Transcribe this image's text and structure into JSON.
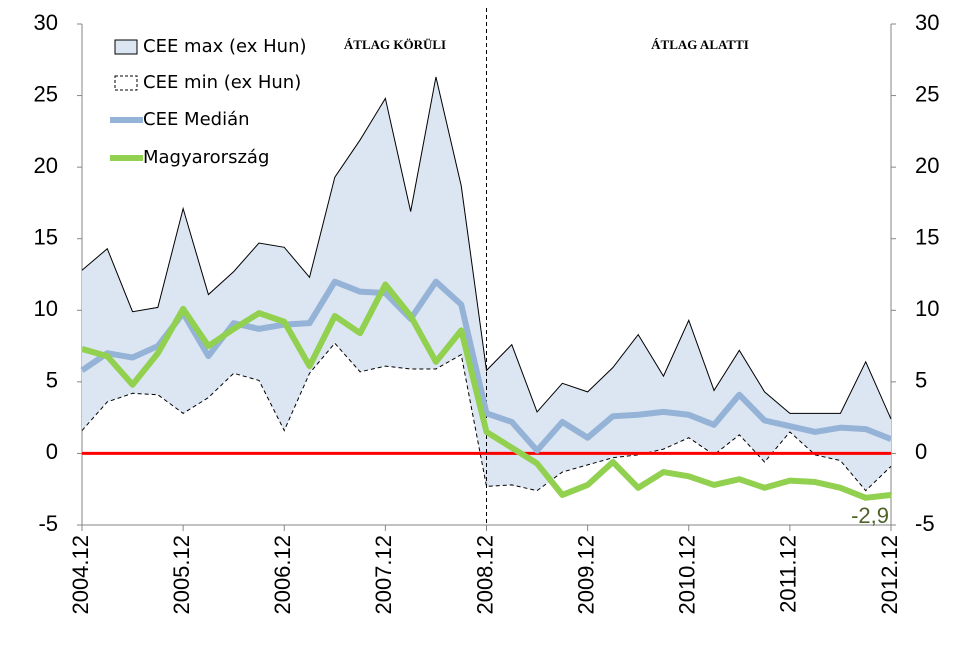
{
  "chart_data": {
    "type": "line",
    "categories": [
      "2004.12",
      null,
      null,
      null,
      "2005.12",
      null,
      null,
      null,
      "2006.12",
      null,
      null,
      null,
      "2007.12",
      null,
      null,
      null,
      "2008.12",
      null,
      null,
      null,
      "2009.12",
      null,
      null,
      null,
      "2010.12",
      null,
      null,
      null,
      "2011.12",
      null,
      null,
      null,
      "2012.12"
    ],
    "series": [
      {
        "name": "CEE max (ex Hun)",
        "color": "#000000",
        "fill": "#dce6f2",
        "values": [
          12.8,
          14.3,
          9.9,
          10.2,
          17.1,
          11.1,
          12.7,
          14.7,
          14.4,
          12.3,
          19.3,
          21.9,
          24.8,
          16.9,
          26.3,
          18.7,
          5.8,
          7.6,
          2.9,
          4.9,
          4.3,
          6.0,
          8.3,
          5.4,
          9.3,
          4.4,
          7.2,
          4.3,
          2.8,
          2.8,
          2.8,
          6.4,
          2.4
        ]
      },
      {
        "name": "CEE min (ex Hun)",
        "color": "#000000",
        "values": [
          1.6,
          3.6,
          4.2,
          4.1,
          2.8,
          3.9,
          5.6,
          5.1,
          1.6,
          5.6,
          7.7,
          5.7,
          6.1,
          5.9,
          5.9,
          6.9,
          -2.3,
          -2.2,
          -2.6,
          -1.3,
          -0.8,
          -0.3,
          -0.1,
          0.3,
          1.1,
          -0.1,
          1.3,
          -0.6,
          1.5,
          -0.1,
          -0.5,
          -2.6,
          -0.9
        ]
      },
      {
        "name": "CEE Medián",
        "color": "#95b3d7",
        "values": [
          5.8,
          7.0,
          6.7,
          7.5,
          9.8,
          6.8,
          9.1,
          8.7,
          9.0,
          9.1,
          12.0,
          11.3,
          11.2,
          9.4,
          12.0,
          10.4,
          2.8,
          2.2,
          0.2,
          2.2,
          1.1,
          2.6,
          2.7,
          2.9,
          2.7,
          2.0,
          4.1,
          2.3,
          1.9,
          1.5,
          1.8,
          1.7,
          1.0
        ]
      },
      {
        "name": "Magyarország",
        "color": "#92d050",
        "values": [
          7.3,
          6.8,
          4.8,
          7.0,
          10.1,
          7.5,
          8.7,
          9.8,
          9.2,
          6.1,
          9.6,
          8.4,
          11.8,
          9.6,
          6.4,
          8.6,
          1.5,
          0.4,
          -0.7,
          -2.9,
          -2.2,
          -0.6,
          -2.4,
          -1.3,
          -1.6,
          -2.2,
          -1.8,
          -2.4,
          -1.9,
          -2.0,
          -2.4,
          -3.1,
          -2.9
        ],
        "value_labels": [
          null,
          null,
          null,
          null,
          null,
          null,
          null,
          null,
          null,
          null,
          null,
          null,
          null,
          null,
          null,
          null,
          null,
          null,
          null,
          null,
          null,
          null,
          null,
          null,
          null,
          null,
          null,
          null,
          null,
          null,
          null,
          null,
          "-2,9"
        ]
      }
    ],
    "annotations": [
      "ÁTLAG KÖRÜLI",
      "ÁTLAG ALATTI"
    ],
    "vline_at": "2008.12",
    "zero_line_color": "#ff0000",
    "ylim": [
      -5,
      30
    ],
    "yticks": [
      -5,
      0,
      5,
      10,
      15,
      20,
      25,
      30
    ],
    "y2lim": [
      -5,
      30
    ],
    "y2ticks": [
      -5,
      0,
      5,
      10,
      15,
      20,
      25,
      30
    ],
    "legend": "upper left"
  }
}
